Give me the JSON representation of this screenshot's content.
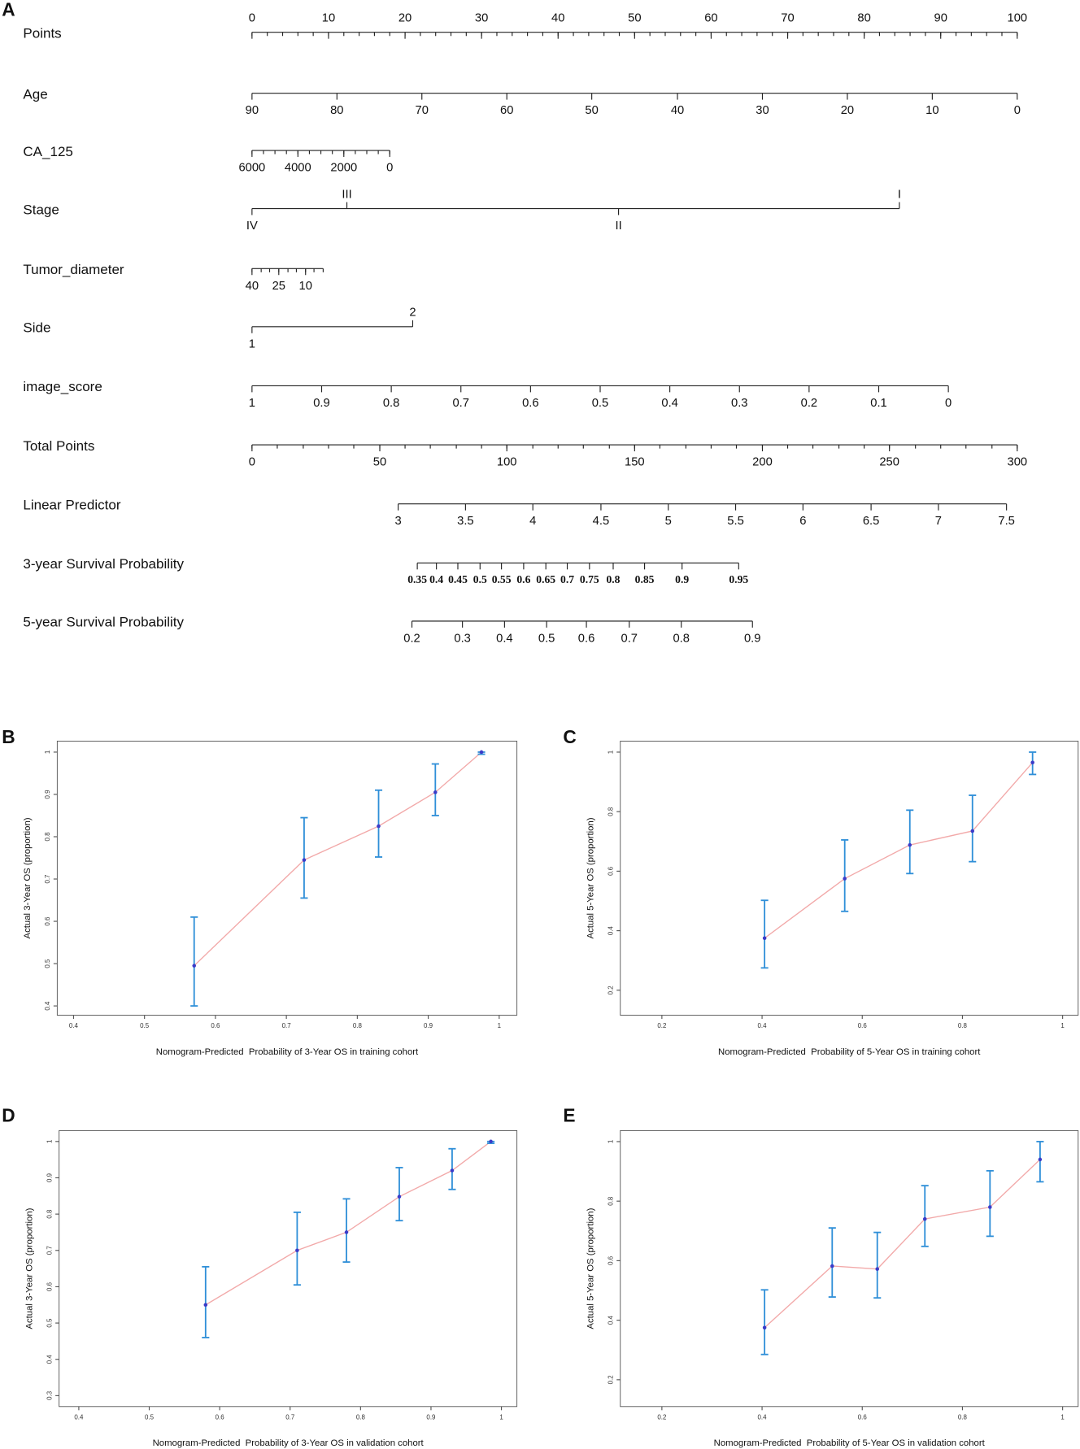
{
  "chart_data": [
    {
      "type": "nomogram",
      "panel": "A",
      "points_lim": [
        0,
        100
      ],
      "rows": [
        {
          "name": "Points",
          "labels_above": true,
          "ticks": [
            0,
            10,
            20,
            30,
            40,
            50,
            60,
            70,
            80,
            90,
            100
          ],
          "points": [
            0,
            10,
            20,
            30,
            40,
            50,
            60,
            70,
            80,
            90,
            100
          ],
          "minor_points": [
            0,
            2,
            4,
            6,
            8,
            10,
            12,
            14,
            16,
            18,
            20,
            22,
            24,
            26,
            28,
            30,
            32,
            34,
            36,
            38,
            40,
            42,
            44,
            46,
            48,
            50,
            52,
            54,
            56,
            58,
            60,
            62,
            64,
            66,
            68,
            70,
            72,
            74,
            76,
            78,
            80,
            82,
            84,
            86,
            88,
            90,
            92,
            94,
            96,
            98,
            100
          ]
        },
        {
          "name": "Age",
          "ticks": [
            90,
            80,
            70,
            60,
            50,
            40,
            30,
            20,
            10,
            0
          ],
          "points": [
            0,
            11.1,
            22.2,
            33.3,
            44.4,
            55.6,
            66.7,
            77.8,
            88.9,
            100
          ]
        },
        {
          "name": "CA_125",
          "ticks": [
            6000,
            4000,
            2000,
            0
          ],
          "points": [
            0,
            6,
            12,
            18
          ],
          "minor_points": [
            0,
            1.5,
            3,
            4.5,
            6,
            7.5,
            9,
            10.5,
            12,
            13.5,
            15,
            16.5,
            18
          ]
        },
        {
          "name": "Stage",
          "alternate": true,
          "ticks": [
            "IV",
            "III",
            "II",
            "I"
          ],
          "points": [
            0,
            12.4,
            47.9,
            84.6
          ]
        },
        {
          "name": "Tumor_diameter",
          "ticks": [
            40,
            25,
            10
          ],
          "points": [
            0,
            3.5,
            7
          ],
          "minor_points": [
            0,
            1.2,
            2.3,
            3.5,
            4.7,
            5.8,
            7,
            8.1,
            9.3
          ]
        },
        {
          "name": "Side",
          "alternate": true,
          "ticks": [
            1,
            2
          ],
          "points": [
            0,
            21
          ]
        },
        {
          "name": "image_score",
          "ticks": [
            1,
            0.9,
            0.8,
            0.7,
            0.6,
            0.5,
            0.4,
            0.3,
            0.2,
            0.1,
            0
          ],
          "points": [
            0,
            9.1,
            18.2,
            27.3,
            36.4,
            45.5,
            54.6,
            63.7,
            72.8,
            81.9,
            91
          ]
        },
        {
          "name": "Total Points",
          "ticks": [
            0,
            50,
            100,
            150,
            200,
            250,
            300
          ],
          "points": [
            0,
            16.7,
            33.3,
            50,
            66.7,
            83.3,
            100
          ],
          "minor_points": [
            0,
            3.3,
            6.7,
            10,
            13.3,
            16.7,
            20,
            23.3,
            26.7,
            30,
            33.3,
            36.7,
            40,
            43.3,
            46.7,
            50,
            53.3,
            56.7,
            60,
            63.3,
            66.7,
            70,
            73.3,
            76.7,
            80,
            83.3,
            86.7,
            90,
            93.3,
            96.7,
            100
          ]
        },
        {
          "name": "Linear Predictor",
          "ticks": [
            3,
            3.5,
            4,
            4.5,
            5,
            5.5,
            6,
            6.5,
            7,
            7.5
          ],
          "points": [
            19.1,
            27.9,
            36.7,
            45.6,
            54.4,
            63.2,
            72,
            80.9,
            89.7,
            98.6
          ]
        },
        {
          "name": "3-year Survival Probability",
          "bold": true,
          "ticks": [
            0.35,
            0.4,
            0.45,
            0.5,
            0.55,
            0.6,
            0.65,
            0.7,
            0.75,
            0.8,
            0.85,
            0.9,
            0.95
          ],
          "points": [
            21.6,
            24.1,
            26.9,
            29.8,
            32.6,
            35.5,
            38.4,
            41.2,
            44.1,
            47.2,
            51.3,
            56.2,
            63.6
          ]
        },
        {
          "name": "5-year Survival Probability",
          "ticks": [
            0.2,
            0.3,
            0.4,
            0.5,
            0.6,
            0.7,
            0.8,
            0.9
          ],
          "points": [
            20.9,
            27.5,
            33,
            38.5,
            43.7,
            49.3,
            56.1,
            65.4
          ]
        }
      ]
    },
    {
      "type": "calibration",
      "panel": "B",
      "xlabel": "Nomogram-Predicted  Probability of 3-Year OS in training cohort",
      "ylabel": "Actual 3-Year OS (proportion)",
      "xlim": [
        0.377,
        1.025
      ],
      "ylim": [
        0.378,
        1.026
      ],
      "xticks": [
        0.4,
        0.5,
        0.6,
        0.7,
        0.8,
        0.9,
        1.0
      ],
      "yticks": [
        0.4,
        0.5,
        0.6,
        0.7,
        0.8,
        0.9,
        1.0
      ],
      "series": [
        {
          "line_color": "#f2a9a9",
          "bar_color": "#2f8fd8",
          "color": "#3b3bc8",
          "x": [
            0.57,
            0.725,
            0.83,
            0.91,
            0.975
          ],
          "y": [
            0.495,
            0.745,
            0.825,
            0.905,
            1.0
          ],
          "lower": [
            0.4,
            0.655,
            0.752,
            0.85,
            0.995
          ],
          "upper": [
            0.61,
            0.845,
            0.91,
            0.972,
            1.0
          ]
        }
      ]
    },
    {
      "type": "calibration",
      "panel": "C",
      "xlabel": "Nomogram-Predicted  Probability of 5-Year OS in training cohort",
      "ylabel": "Actual 5-Year OS (proportion)",
      "xlim": [
        0.117,
        1.031
      ],
      "ylim": [
        0.116,
        1.037
      ],
      "xticks": [
        0.2,
        0.4,
        0.6,
        0.8,
        1.0
      ],
      "yticks": [
        0.2,
        0.4,
        0.6,
        0.8,
        1.0
      ],
      "series": [
        {
          "line_color": "#f2a9a9",
          "bar_color": "#2f8fd8",
          "color": "#3b3bc8",
          "x": [
            0.405,
            0.565,
            0.695,
            0.82,
            0.94
          ],
          "y": [
            0.375,
            0.575,
            0.688,
            0.735,
            0.965
          ],
          "lower": [
            0.275,
            0.465,
            0.592,
            0.632,
            0.925
          ],
          "upper": [
            0.502,
            0.705,
            0.805,
            0.855,
            1.0
          ]
        }
      ]
    },
    {
      "type": "calibration",
      "panel": "D",
      "xlabel": "Nomogram-Predicted  Probability of 3-Year OS in validation cohort",
      "ylabel": "Actual 3-Year OS (proportion)",
      "xlim": [
        0.372,
        1.022
      ],
      "ylim": [
        0.27,
        1.03
      ],
      "xticks": [
        0.4,
        0.5,
        0.6,
        0.7,
        0.8,
        0.9,
        1.0
      ],
      "yticks": [
        0.3,
        0.4,
        0.5,
        0.6,
        0.7,
        0.8,
        0.9,
        1.0
      ],
      "series": [
        {
          "line_color": "#f2a9a9",
          "bar_color": "#2f8fd8",
          "color": "#3b3bc8",
          "x": [
            0.58,
            0.71,
            0.78,
            0.855,
            0.93,
            0.985
          ],
          "y": [
            0.55,
            0.7,
            0.75,
            0.848,
            0.92,
            1.0
          ],
          "lower": [
            0.46,
            0.605,
            0.668,
            0.782,
            0.868,
            0.995
          ],
          "upper": [
            0.655,
            0.805,
            0.842,
            0.928,
            0.98,
            1.0
          ]
        }
      ]
    },
    {
      "type": "calibration",
      "panel": "E",
      "xlabel": "Nomogram-Predicted  Probability of 5-Year OS in validation cohort",
      "ylabel": "Actual 5-Year OS (proportion)",
      "xlim": [
        0.117,
        1.031
      ],
      "ylim": [
        0.11,
        1.037
      ],
      "xticks": [
        0.2,
        0.4,
        0.6,
        0.8,
        1.0
      ],
      "yticks": [
        0.2,
        0.4,
        0.6,
        0.8,
        1.0
      ],
      "series": [
        {
          "line_color": "#f2a9a9",
          "bar_color": "#2f8fd8",
          "color": "#3b3bc8",
          "x": [
            0.405,
            0.54,
            0.63,
            0.725,
            0.855,
            0.955
          ],
          "y": [
            0.375,
            0.582,
            0.572,
            0.74,
            0.78,
            0.94
          ],
          "lower": [
            0.285,
            0.478,
            0.475,
            0.648,
            0.682,
            0.865
          ],
          "upper": [
            0.502,
            0.71,
            0.695,
            0.852,
            0.902,
            1.0
          ]
        }
      ]
    }
  ]
}
